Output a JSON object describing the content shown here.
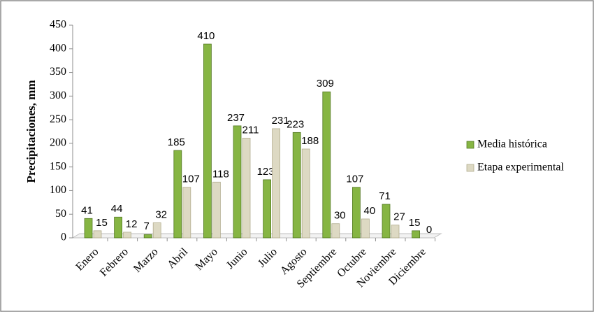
{
  "chart_data": {
    "type": "bar",
    "y_label": "Precipitaciones, mm",
    "categories": [
      "Enero",
      "Febrero",
      "Marzo",
      "Abril",
      "Mayo",
      "Junio",
      "Julio",
      "Agosto",
      "Septiembre",
      "Octubre",
      "Noviembre",
      "Diciembre"
    ],
    "series": [
      {
        "name": "Media histórica",
        "color": "#86b543",
        "values": [
          41,
          44,
          7,
          185,
          410,
          237,
          123,
          223,
          309,
          107,
          71,
          15
        ]
      },
      {
        "name": "Etapa experimental",
        "color": "#ddd9c3",
        "values": [
          15,
          12,
          32,
          107,
          118,
          211,
          231,
          188,
          30,
          40,
          27,
          0
        ]
      }
    ],
    "ylim": [
      0,
      450
    ],
    "yticks": [
      0,
      50,
      100,
      150,
      200,
      250,
      300,
      350,
      400,
      450
    ],
    "legend": "right"
  }
}
